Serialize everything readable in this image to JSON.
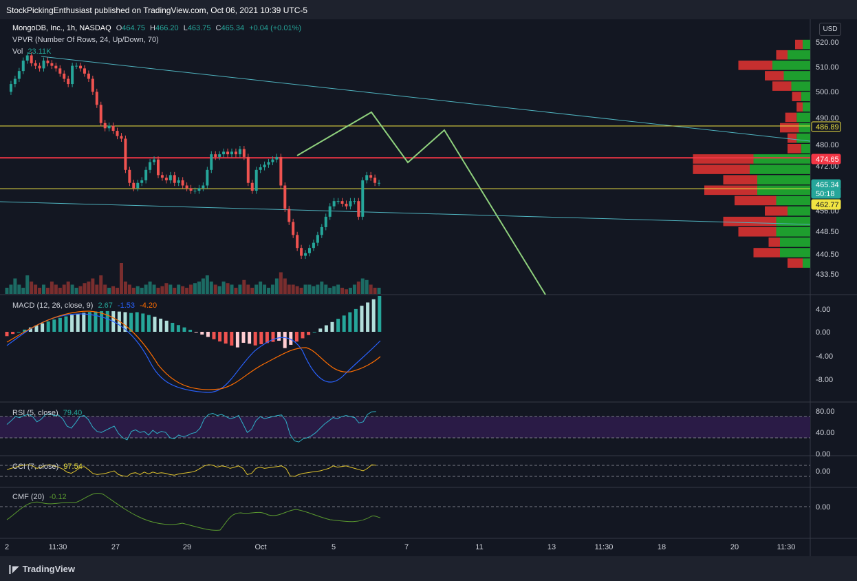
{
  "header": {
    "published": "StockPickingEnthusiast published on TradingView.com, Oct 06, 2021 10:39 UTC-5",
    "currency": "USD"
  },
  "symbol": {
    "name": "MongoDB, Inc., 1h, NASDAQ",
    "o_label": "O",
    "o": "464.75",
    "h_label": "H",
    "h": "466.20",
    "l_label": "L",
    "l": "463.75",
    "c_label": "C",
    "c": "465.34",
    "change": "+0.04 (+0.01%)"
  },
  "overlays": {
    "vpvr": "VPVR (Number Of Rows, 24, Up/Down, 70)",
    "vol_label": "Vol",
    "vol_value": "23.11K"
  },
  "indicators": {
    "macd_label": "MACD (12, 26, close, 9)",
    "macd_hist": "2.67",
    "macd_line": "-1.53",
    "macd_signal": "-4.20",
    "rsi_label": "RSI (5, close)",
    "rsi_value": "79.40",
    "cci_label": "CCI (7, close)",
    "cci_value": "97.54",
    "cmf_label": "CMF (20)",
    "cmf_value": "-0.12"
  },
  "price_axis": {
    "ticks": [
      "520.00",
      "510.00",
      "500.00",
      "490.00",
      "480.00",
      "472.00",
      "456.00",
      "448.50",
      "440.50",
      "433.50"
    ],
    "badges": [
      {
        "text": "486.89",
        "bg": "#131722",
        "fg": "#f0e442",
        "border": "#f0e442"
      },
      {
        "text": "474.65",
        "bg": "#f23645",
        "fg": "#ffffff",
        "border": "#f23645"
      },
      {
        "text": "465.34",
        "bg": "#26a69a",
        "fg": "#ffffff",
        "border": "#26a69a"
      },
      {
        "text": "50:18",
        "bg": "#26a69a",
        "fg": "#ffffff",
        "border": "#26a69a"
      },
      {
        "text": "462.77",
        "bg": "#f0e442",
        "fg": "#131722",
        "border": "#f0e442"
      }
    ]
  },
  "macd_axis": [
    "4.00",
    "0.00",
    "-4.00",
    "-8.00"
  ],
  "rsi_axis": [
    "80.00",
    "40.00",
    "0.00"
  ],
  "cci_axis": [
    "0.00"
  ],
  "cmf_axis": [
    "0.00"
  ],
  "time_axis": [
    "2",
    "11:30",
    "27",
    "29",
    "Oct",
    "5",
    "7",
    "11",
    "13",
    "11:30",
    "18",
    "20",
    "11:30"
  ],
  "footer": {
    "brand": "TradingView"
  },
  "colors": {
    "up": "#26a69a",
    "down": "#ef5350",
    "hline_yellow": "#f0e442",
    "hline_red": "#f23645",
    "trend": "#4fb3bf",
    "projection": "#8fd17d",
    "macd": "#2962ff",
    "signal": "#ff6d00"
  },
  "chart_data": {
    "type": "candlestick",
    "title": "MongoDB, Inc., 1h, NASDAQ",
    "close_series": [
      500,
      503,
      505,
      508,
      512,
      514,
      511,
      510,
      509,
      512,
      511,
      510,
      509,
      507,
      505,
      503,
      510,
      510,
      509,
      507,
      505,
      500,
      495,
      488,
      486,
      487,
      485,
      483,
      482,
      470,
      465,
      463,
      465,
      466,
      470,
      473,
      474,
      468,
      467,
      466,
      468,
      465,
      466,
      464,
      463,
      462,
      462,
      463,
      464,
      470,
      476,
      475,
      476,
      477,
      476,
      477,
      476,
      478,
      475,
      465,
      462,
      470,
      471,
      472,
      473,
      474,
      475,
      464,
      455,
      450,
      445,
      440,
      437,
      438,
      440,
      442,
      445,
      448,
      452,
      456,
      458,
      458,
      457,
      456,
      458,
      458,
      452,
      466,
      468,
      467,
      465,
      465
    ],
    "volume_relative": [
      0.2,
      0.3,
      0.5,
      0.3,
      0.2,
      0.6,
      0.4,
      0.3,
      0.2,
      0.3,
      0.2,
      0.4,
      0.3,
      0.2,
      0.3,
      0.4,
      0.3,
      0.2,
      0.25,
      0.35,
      0.4,
      0.5,
      0.3,
      0.6,
      0.3,
      0.2,
      0.25,
      0.2,
      1.0,
      0.4,
      0.3,
      0.2,
      0.25,
      0.2,
      0.3,
      0.4,
      0.3,
      0.2,
      0.25,
      0.35,
      0.3,
      0.2,
      0.3,
      0.25,
      0.2,
      0.3,
      0.35,
      0.4,
      0.5,
      0.6,
      0.4,
      0.3,
      0.25,
      0.4,
      0.35,
      0.3,
      0.2,
      0.3,
      0.45,
      0.3,
      0.2,
      0.3,
      0.4,
      0.3,
      0.2,
      0.3,
      0.5,
      0.7,
      0.5,
      0.3,
      0.3,
      0.25,
      0.2,
      0.3,
      0.3,
      0.25,
      0.3,
      0.4,
      0.3,
      0.2,
      0.25,
      0.3,
      0.2,
      0.15,
      0.2,
      0.3,
      0.4,
      0.5,
      0.45,
      0.3,
      0.2,
      0.2
    ],
    "horizontal_levels": [
      486.89,
      474.65,
      462.77
    ],
    "volume_profile": [
      {
        "price": 518,
        "up": 0.1,
        "down": 0.1
      },
      {
        "price": 514,
        "up": 0.3,
        "down": 0.15
      },
      {
        "price": 510,
        "up": 0.5,
        "down": 0.45
      },
      {
        "price": 506,
        "up": 0.35,
        "down": 0.25
      },
      {
        "price": 502,
        "up": 0.25,
        "down": 0.25
      },
      {
        "price": 498,
        "up": 0.12,
        "down": 0.12
      },
      {
        "price": 494,
        "up": 0.1,
        "down": 0.08
      },
      {
        "price": 490,
        "up": 0.18,
        "down": 0.15
      },
      {
        "price": 486,
        "up": 0.15,
        "down": 0.25
      },
      {
        "price": 482,
        "up": 0.18,
        "down": 0.12
      },
      {
        "price": 478,
        "up": 0.12,
        "down": 0.18
      },
      {
        "price": 474,
        "up": 0.75,
        "down": 0.8
      },
      {
        "price": 470,
        "up": 0.8,
        "down": 0.75
      },
      {
        "price": 466,
        "up": 0.7,
        "down": 0.45
      },
      {
        "price": 462,
        "up": 0.7,
        "down": 0.7
      },
      {
        "price": 458,
        "up": 0.45,
        "down": 0.55
      },
      {
        "price": 454,
        "up": 0.3,
        "down": 0.3
      },
      {
        "price": 450,
        "up": 0.45,
        "down": 0.7
      },
      {
        "price": 446,
        "up": 0.45,
        "down": 0.5
      },
      {
        "price": 442,
        "up": 0.4,
        "down": 0.15
      },
      {
        "price": 438,
        "up": 0.4,
        "down": 0.35
      },
      {
        "price": 434,
        "up": 0.1,
        "down": 0.2
      }
    ],
    "rsi_series": [
      55,
      62,
      70,
      68,
      72,
      74,
      70,
      60,
      65,
      74,
      75,
      72,
      73,
      66,
      52,
      48,
      58,
      70,
      72,
      64,
      50,
      42,
      40,
      44,
      48,
      52,
      38,
      30,
      26,
      42,
      45,
      40,
      42,
      35,
      44,
      38,
      42,
      40,
      30,
      28,
      35,
      32,
      34,
      38,
      40,
      48,
      66,
      74,
      76,
      72,
      74,
      70,
      66,
      68,
      72,
      56,
      40,
      46,
      62,
      70,
      66,
      68,
      70,
      72,
      73,
      62,
      36,
      24,
      22,
      28,
      30,
      34,
      40,
      48,
      56,
      62,
      68,
      66,
      70,
      72,
      70,
      68,
      58,
      60,
      74,
      79,
      79.4
    ],
    "cci_series": [
      20,
      40,
      60,
      80,
      90,
      100,
      80,
      40,
      60,
      90,
      100,
      80,
      60,
      30,
      -20,
      -40,
      0,
      50,
      70,
      20,
      -40,
      -60,
      -50,
      -40,
      -20,
      0,
      -60,
      -80,
      -90,
      -40,
      -30,
      -60,
      -20,
      -50,
      -20,
      -40,
      -30,
      -40,
      -60,
      -70,
      -50,
      -40,
      -30,
      -20,
      0,
      40,
      80,
      100,
      90,
      60,
      80,
      70,
      40,
      60,
      80,
      40,
      -60,
      -40,
      40,
      60,
      40,
      50,
      60,
      70,
      80,
      40,
      -80,
      -90,
      -60,
      -40,
      -30,
      -20,
      -10,
      0,
      20,
      40,
      80,
      60,
      70,
      80,
      60,
      40,
      20,
      0,
      40,
      97.54,
      90
    ]
  }
}
